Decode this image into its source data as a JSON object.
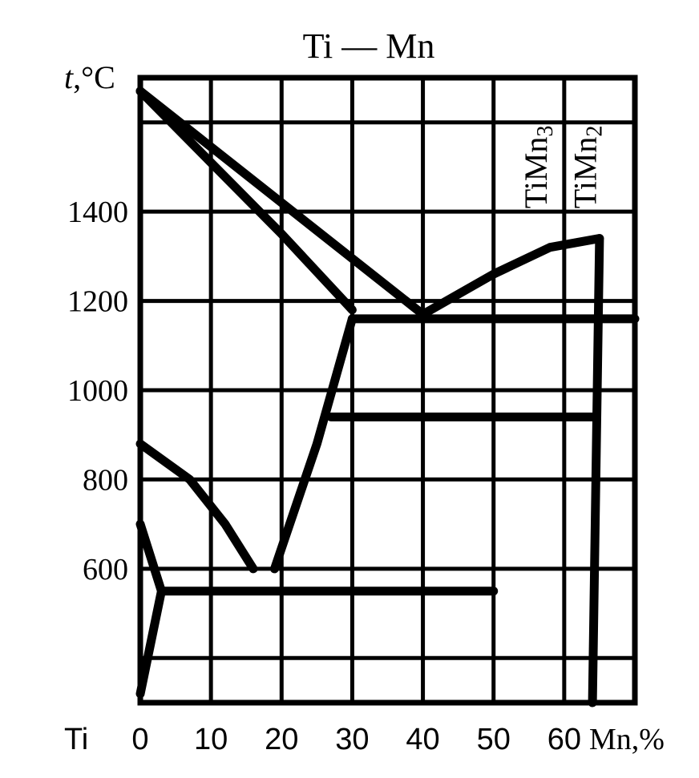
{
  "chart_data": {
    "type": "line",
    "title": "Ti — Mn",
    "ylabel_italic": "t",
    "ylabel_rest": ",°C",
    "x_left_label": "Ti",
    "x_right_label": "Mn,%",
    "xlim": [
      0,
      70
    ],
    "ylim": [
      300,
      1700
    ],
    "x_ticks": [
      0,
      10,
      20,
      30,
      40,
      50,
      60
    ],
    "x_tick_labels": [
      "0",
      "10",
      "20",
      "30",
      "40",
      "50",
      "60"
    ],
    "y_ticks": [
      600,
      800,
      1000,
      1200,
      1400
    ],
    "y_tick_labels": [
      "600",
      "800",
      "1000",
      "1200",
      "1400"
    ],
    "grid_x": [
      0,
      10,
      20,
      30,
      40,
      50,
      60,
      70
    ],
    "grid_y": [
      400,
      600,
      800,
      1000,
      1200,
      1400,
      1600
    ],
    "phases": [
      {
        "label_main": "TiMn",
        "label_sub": "3",
        "x": 56.5
      },
      {
        "label_main": "TiMn",
        "label_sub": "2",
        "x": 63.5
      }
    ],
    "series": [
      {
        "id": "liquidus-left",
        "points": [
          [
            0,
            1670
          ],
          [
            40,
            1170
          ]
        ]
      },
      {
        "id": "solidus-left",
        "points": [
          [
            0,
            1670
          ],
          [
            10,
            1510
          ],
          [
            20,
            1350
          ],
          [
            30,
            1180
          ]
        ]
      },
      {
        "id": "liquidus-right",
        "points": [
          [
            40,
            1170
          ],
          [
            50,
            1260
          ],
          [
            58,
            1320
          ],
          [
            65,
            1340
          ]
        ]
      },
      {
        "id": "timn2-line",
        "points": [
          [
            65,
            1340
          ],
          [
            64,
            300
          ]
        ]
      },
      {
        "id": "eutectic-1170",
        "points": [
          [
            30,
            1160
          ],
          [
            70,
            1160
          ]
        ]
      },
      {
        "id": "line-950",
        "points": [
          [
            27,
            940
          ],
          [
            64,
            940
          ]
        ]
      },
      {
        "id": "beta-solvus",
        "points": [
          [
            0,
            880
          ],
          [
            7,
            800
          ],
          [
            12,
            700
          ],
          [
            16,
            600
          ]
        ]
      },
      {
        "id": "beta-boundary",
        "points": [
          [
            19,
            600
          ],
          [
            25,
            880
          ],
          [
            30,
            1160
          ]
        ]
      },
      {
        "id": "eutectoid-550",
        "points": [
          [
            3,
            550
          ],
          [
            50,
            550
          ]
        ]
      },
      {
        "id": "alpha-boundary",
        "points": [
          [
            0,
            700
          ],
          [
            3,
            550
          ],
          [
            0,
            320
          ]
        ]
      }
    ]
  }
}
